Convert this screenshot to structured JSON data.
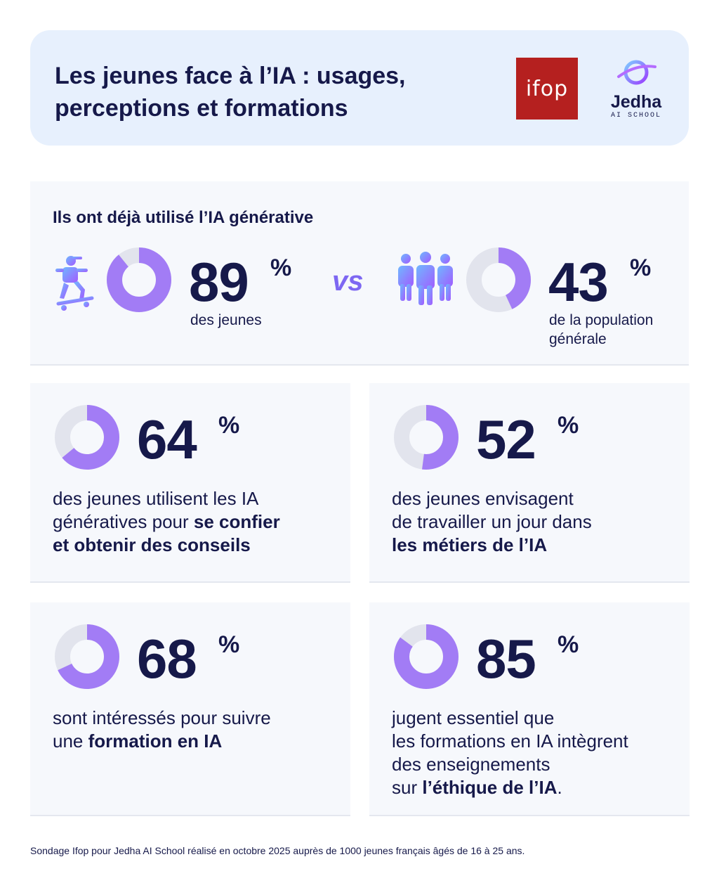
{
  "header": {
    "title_line1": "Les jeunes face à l’IA : usages,",
    "title_line2": "perceptions et formations",
    "ifop_logo": "ifop",
    "jedha_name": "Jedha",
    "jedha_sub": "AI SCHOOL"
  },
  "colors": {
    "accent": "#a27cf5",
    "track": "#e2e4ed",
    "navy": "#16194a",
    "panel": "#f6f8fc",
    "header": "#e7f0fd",
    "ifop_red": "#b5201f"
  },
  "top": {
    "title": "Ils ont déjà utilisé l’IA générative",
    "left": {
      "value": 89,
      "number": "89",
      "pct": "%",
      "caption": "des jeunes",
      "icon": "skateboarder-icon"
    },
    "vs": "vs",
    "right": {
      "value": 43,
      "number": "43",
      "pct": "%",
      "caption_line1": "de la population",
      "caption_line2": "générale",
      "icon": "people-group-icon"
    }
  },
  "cards": [
    {
      "value": 64,
      "number": "64",
      "pct": "%",
      "t1": "des jeunes utilisent les IA",
      "t2": "génératives pour ",
      "t2b": "se confier",
      "t3b": "et obtenir des conseils"
    },
    {
      "value": 52,
      "number": "52",
      "pct": "%",
      "t1": "des jeunes envisagent",
      "t2": "de travailler un jour dans",
      "t3b": "les métiers de l’IA"
    },
    {
      "value": 68,
      "number": "68",
      "pct": "%",
      "t1": "sont intéressés pour suivre",
      "t2": "une ",
      "t2b": "formation en IA"
    },
    {
      "value": 85,
      "number": "85",
      "pct": "%",
      "t1": "jugent essentiel que",
      "t2": "les formations en IA intègrent",
      "t3": "des enseignements",
      "t4": "sur ",
      "t4b": "l’éthique de l’IA",
      "t4end": "."
    }
  ],
  "footnote": "Sondage Ifop pour Jedha AI School réalisé en octobre 2025 auprès de 1000 jeunes français âgés de 16 à 25 ans."
}
